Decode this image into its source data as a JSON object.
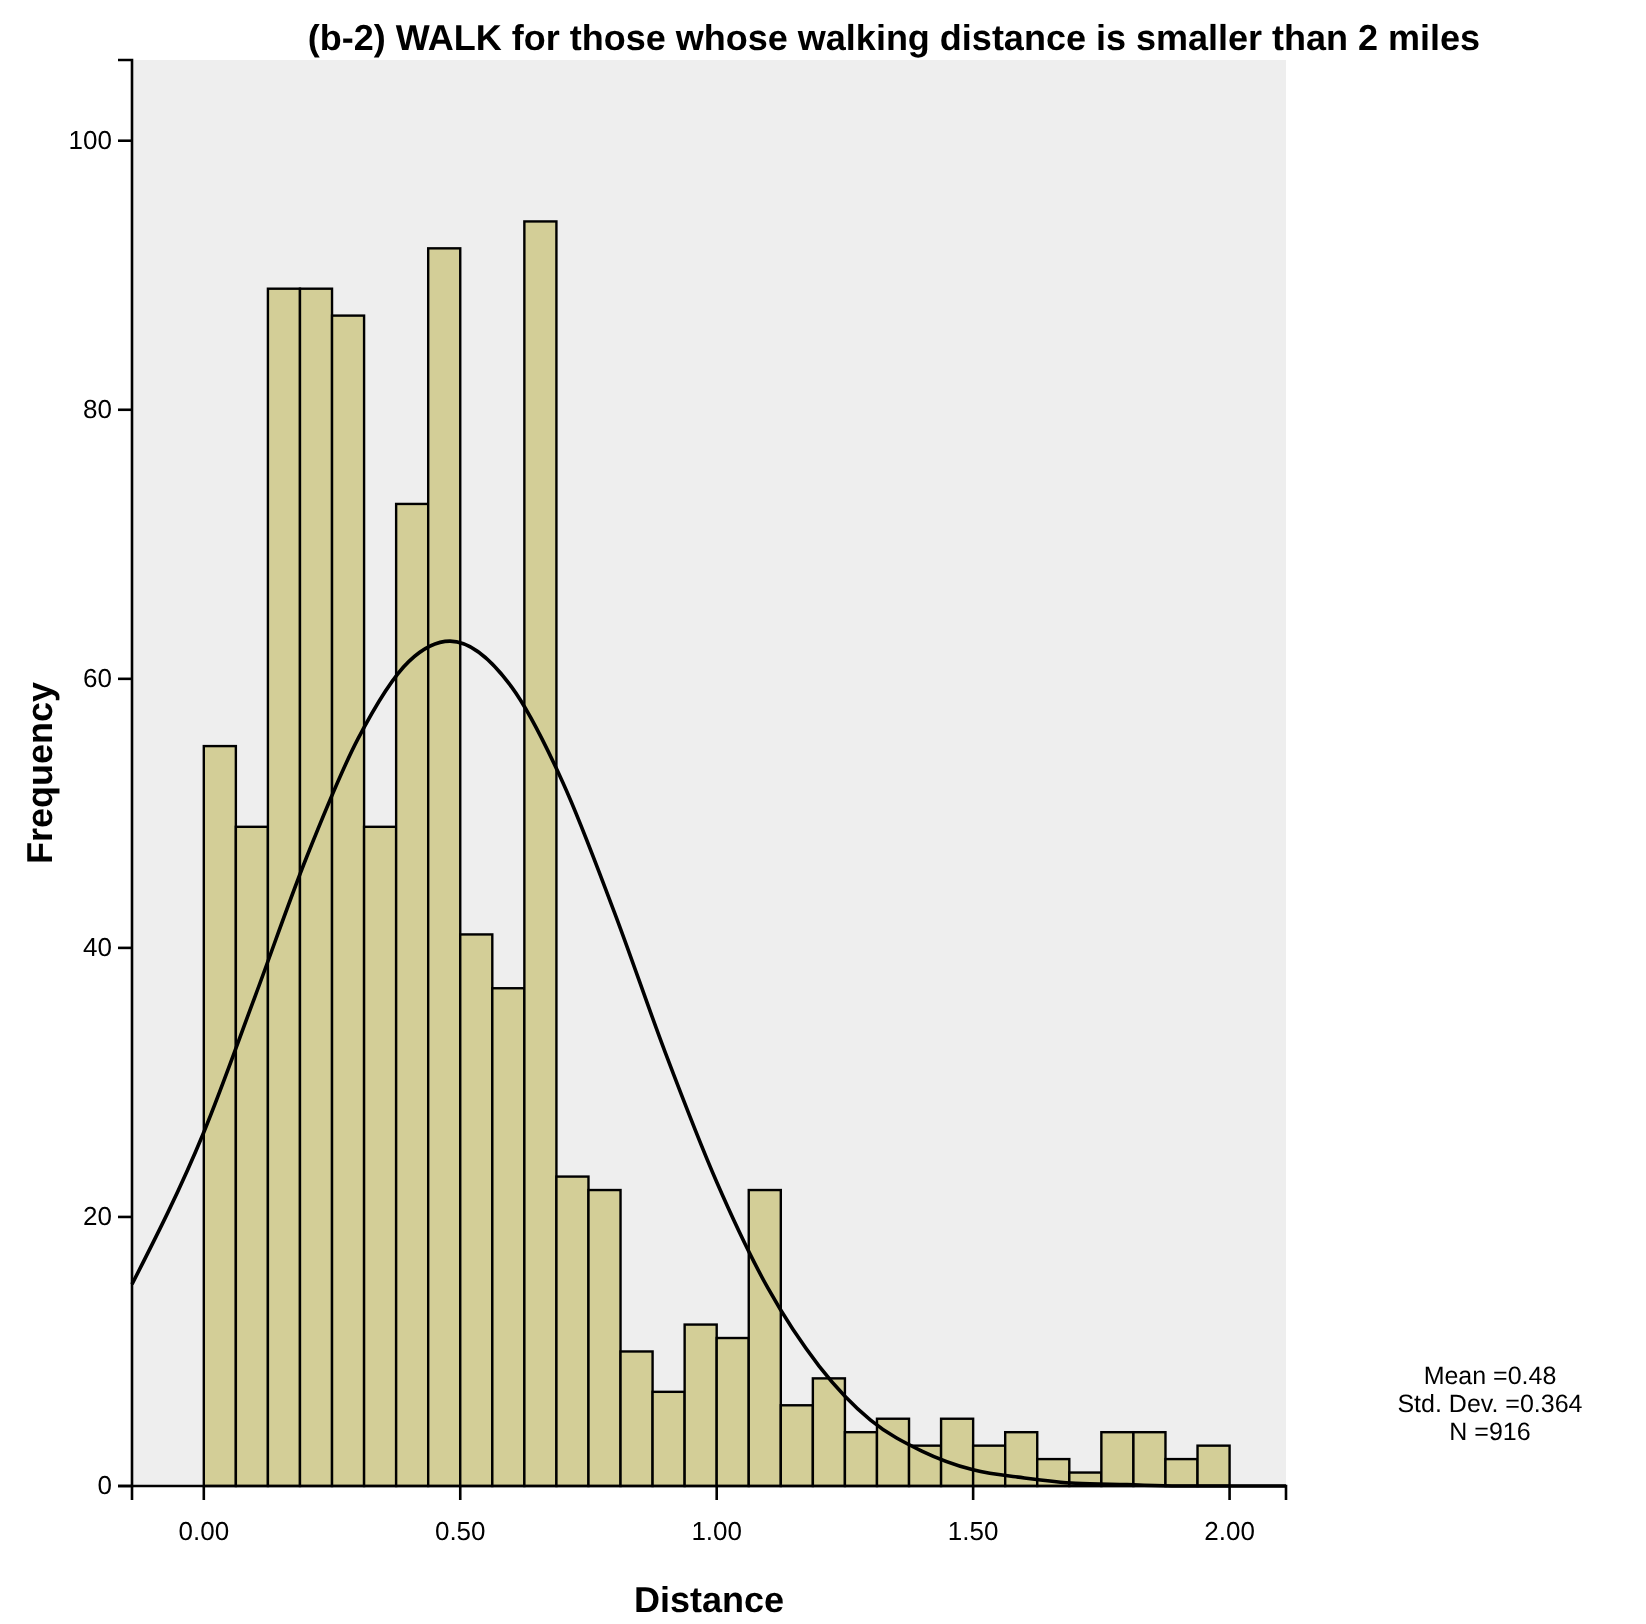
{
  "chart_data": {
    "type": "histogram",
    "title": "(b-2) WALK for those whose walking distance is smaller than 2 miles",
    "xlabel": "Distance",
    "ylabel": "Frequency",
    "bins": [
      0,
      0.0625,
      0.125,
      0.1875,
      0.25,
      0.3125,
      0.375,
      0.4375,
      0.5,
      0.5625,
      0.625,
      0.6875,
      0.75,
      0.8125,
      0.875,
      0.9375,
      1,
      1.0625,
      1.125,
      1.1875,
      1.25,
      1.3125,
      1.375,
      1.4375,
      1.5,
      1.5625,
      1.625,
      1.6875,
      1.75,
      1.8125,
      1.875,
      1.9375,
      2
    ],
    "values": [
      55,
      49,
      89,
      89,
      87,
      49,
      73,
      92,
      41,
      37,
      94,
      23,
      22,
      10,
      7,
      12,
      11,
      22,
      6,
      8,
      4,
      5,
      3,
      5,
      3,
      4,
      2,
      1,
      4,
      4,
      2,
      3
    ],
    "color": "#d3ce97",
    "series": [
      {
        "type": "line",
        "color": "#000000",
        "x": [
          -0.14,
          0,
          0.1,
          0.2,
          0.3,
          0.4,
          0.48,
          0.6,
          0.7,
          0.8,
          0.9,
          1,
          1.1,
          1.2,
          1.3,
          1.4,
          1.5,
          1.6,
          1.7,
          1.8,
          1.9,
          2.0,
          2.11
        ],
        "values": [
          15,
          26.3,
          36.4,
          46.7,
          55.5,
          61.3,
          62.8,
          59.4,
          52.3,
          42.7,
          32.2,
          22.6,
          14.7,
          8.9,
          4.9,
          2.6,
          1.2,
          0.6,
          0.2,
          0.1,
          0,
          0,
          0
        ]
      }
    ],
    "xlim": [
      -0.14,
      2.11
    ],
    "xticks": [
      {
        "value": 0,
        "label": "0.00"
      },
      {
        "value": 0.5,
        "label": "0.50"
      },
      {
        "value": 1,
        "label": "1.00"
      },
      {
        "value": 1.5,
        "label": "1.50"
      },
      {
        "value": 2,
        "label": "2.00"
      }
    ],
    "ylim": [
      0,
      106
    ],
    "yticks": [
      0,
      20,
      40,
      60,
      80,
      100
    ],
    "grid": false,
    "annotations": [
      "Mean =0.48",
      "Std. Dev. =0.364",
      "N =916"
    ]
  }
}
